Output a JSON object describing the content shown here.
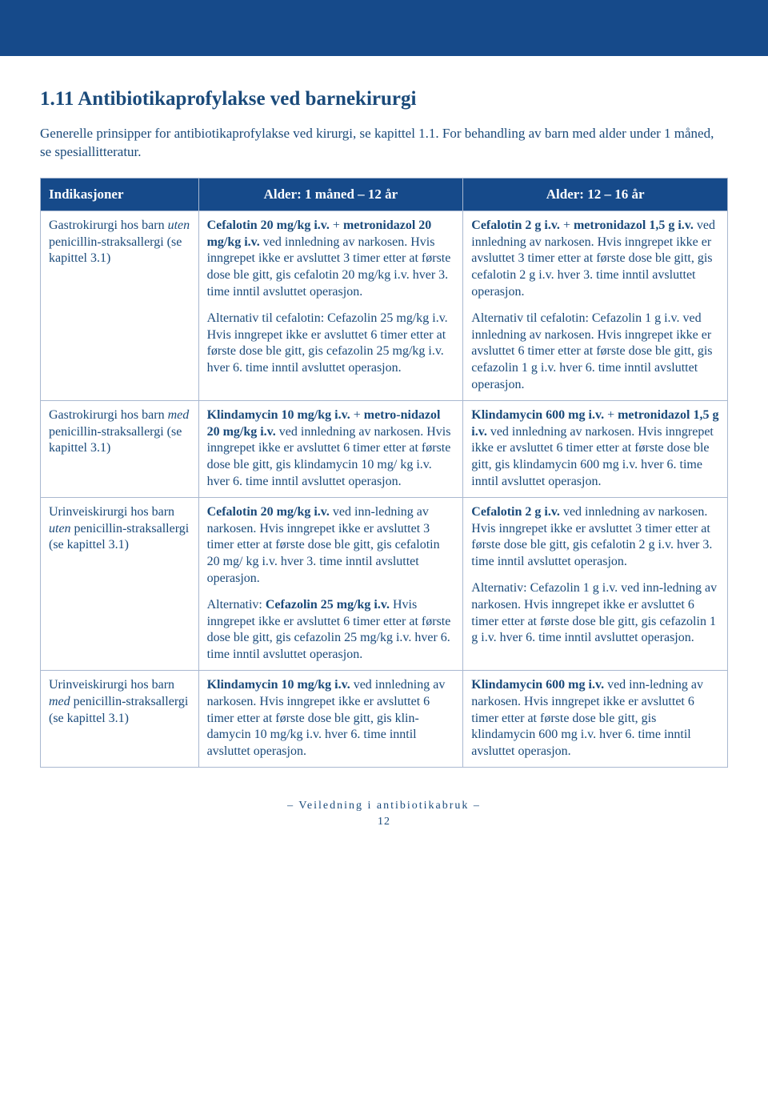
{
  "colors": {
    "accent": "#164a8a",
    "text": "#1a4a7a",
    "border": "#a9b8d0",
    "background": "#ffffff"
  },
  "typography": {
    "title_fontsize": 25,
    "intro_fontsize": 17,
    "th_fontsize": 17,
    "td_fontsize": 16,
    "footer_fontsize": 14
  },
  "title": "1.11 Antibiotikaprofylakse ved barnekirurgi",
  "intro": "Generelle prinsipper for antibiotikaprofylakse ved kirurgi, se kapittel 1.1. For behandling av barn med alder under 1 måned, se spesiallitteratur.",
  "headers": {
    "col1": "Indikasjoner",
    "col2": "Alder: 1 måned – 12 år",
    "col3": "Alder: 12 – 16 år"
  },
  "rows": [
    {
      "c1": "Gastrokirurgi hos barn <em>uten</em> penicillin-straksallergi (se kapittel 3.1)",
      "c2": "<p><b>Cefalotin 20 mg/kg i.v.</b> + <b>metronidazol 20 mg/kg i.v.</b> ved innledning av narkosen. Hvis inngrepet ikke er avsluttet 3 timer etter at første dose ble gitt, gis cefalotin 20 mg/kg i.v. hver 3. time inntil avsluttet operasjon.</p><p>Alternativ til cefalotin: Cefazolin 25 mg/kg i.v. Hvis inngrepet ikke er avsluttet 6 timer etter at første dose ble gitt, gis cefazolin 25 mg/kg i.v. hver 6. time inntil avsluttet operasjon.</p>",
      "c3": "<p><b>Cefalotin 2 g i.v.</b> + <b>metronidazol 1,5 g i.v.</b> ved innledning av narkosen. Hvis inngrepet ikke er avsluttet 3 timer etter at første dose ble gitt, gis cefalotin 2 g i.v. hver 3. time inntil avsluttet operasjon.</p><p>Alternativ til cefalotin: Cefazolin 1 g i.v. ved innledning av narkosen. Hvis inngrepet ikke er avsluttet 6 timer etter at første dose ble gitt, gis cefazolin 1 g i.v. hver 6. time inntil avsluttet operasjon.</p>"
    },
    {
      "c1": "Gastrokirurgi hos barn <em>med</em> penicillin-straksallergi (se kapittel 3.1)",
      "c2": "<b>Klindamycin 10 mg/kg i.v.</b> + <b>metro-nidazol 20 mg/kg i.v.</b> ved innledning av narkosen. Hvis inngrepet ikke er avsluttet 6 timer etter at første dose ble gitt, gis klindamycin 10 mg/ kg i.v. hver 6. time inntil avsluttet operasjon.",
      "c3": "<b>Klindamycin 600 mg i.v.</b> + <b>metronidazol 1,5 g i.v.</b> ved innledning av narkosen. Hvis inngrepet ikke er avsluttet 6 timer etter at første dose ble gitt, gis klindamycin 600 mg i.v. hver 6. time inntil avsluttet operasjon."
    },
    {
      "c1": "Urinveiskirurgi hos barn <em>uten</em> penicillin-straksallergi (se kapittel 3.1)",
      "c2": "<p><b>Cefalotin 20 mg/kg i.v.</b> ved inn-ledning av narkosen. Hvis inngrepet ikke er avsluttet 3 timer etter at første dose ble gitt, gis cefalotin 20 mg/ kg i.v. hver 3. time inntil avsluttet operasjon.</p><p>Alternativ: <b>Cefazolin 25 mg/kg i.v.</b> Hvis inngrepet ikke er avsluttet 6 timer etter at første dose ble gitt, gis cefazolin 25 mg/kg i.v. hver 6. time inntil avsluttet operasjon.</p>",
      "c3": "<p><b>Cefalotin 2 g i.v.</b> ved innledning av narkosen. Hvis inngrepet ikke er avsluttet 3 timer etter at første dose ble gitt, gis cefalotin 2 g i.v. hver 3. time inntil avsluttet operasjon.</p><p>Alternativ: Cefazolin 1 g i.v. ved inn-ledning av narkosen. Hvis inngrepet ikke er avsluttet 6 timer etter at første dose ble gitt, gis cefazolin 1 g i.v. hver 6. time inntil avsluttet operasjon.</p>"
    },
    {
      "c1": "Urinveiskirurgi hos barn <em>med</em> penicillin-straksallergi (se kapittel 3.1)",
      "c2": "<b>Klindamycin 10 mg/kg i.v.</b> ved innledning av narkosen. Hvis inngrepet ikke er avsluttet 6 timer etter at første dose ble gitt, gis klin-damycin 10 mg/kg i.v. hver 6. time inntil avsluttet operasjon.",
      "c3": "<b>Klindamycin 600 mg i.v.</b> ved inn-ledning av narkosen. Hvis inngrepet ikke er avsluttet 6 timer etter at første dose ble gitt, gis klindamycin 600 mg i.v. hver 6. time inntil avsluttet operasjon."
    }
  ],
  "footer": {
    "text": "– Veiledning i antibiotikabruk –",
    "page": "12"
  }
}
